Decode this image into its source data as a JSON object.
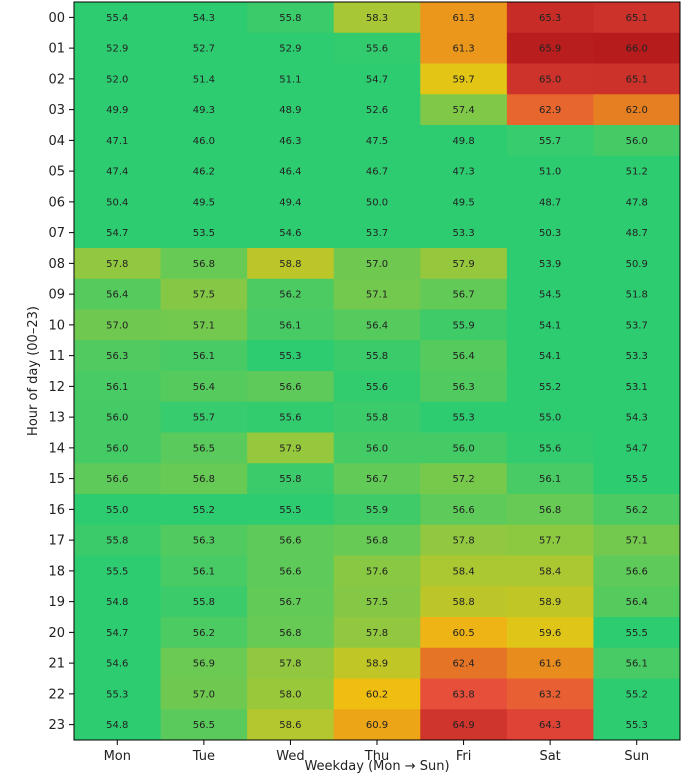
{
  "chart_data": {
    "type": "heatmap",
    "title": "",
    "xlabel": "Weekday (Mon → Sun)",
    "ylabel": "Hour of day (00–23)",
    "x_categories": [
      "Mon",
      "Tue",
      "Wed",
      "Thu",
      "Fri",
      "Sat",
      "Sun"
    ],
    "y_categories": [
      "00",
      "01",
      "02",
      "03",
      "04",
      "05",
      "06",
      "07",
      "08",
      "09",
      "10",
      "11",
      "12",
      "13",
      "14",
      "15",
      "16",
      "17",
      "18",
      "19",
      "20",
      "21",
      "22",
      "23"
    ],
    "colormap": "green-yellow-orange-red",
    "color_stops": [
      "#2ecc71",
      "#f1c40f",
      "#e67e22",
      "#e74c3c",
      "#b71c1c"
    ],
    "values": [
      [
        55.4,
        54.3,
        55.8,
        58.3,
        61.3,
        65.3,
        65.1
      ],
      [
        52.9,
        52.7,
        52.9,
        55.6,
        61.3,
        65.9,
        66.0
      ],
      [
        52.0,
        51.4,
        51.1,
        54.7,
        59.7,
        65.0,
        65.1
      ],
      [
        49.9,
        49.3,
        48.9,
        52.6,
        57.4,
        62.9,
        62.0
      ],
      [
        47.1,
        46.0,
        46.3,
        47.5,
        49.8,
        55.7,
        56.0
      ],
      [
        47.4,
        46.2,
        46.4,
        46.7,
        47.3,
        51.0,
        51.2
      ],
      [
        50.4,
        49.5,
        49.4,
        50.0,
        49.5,
        48.7,
        47.8
      ],
      [
        54.7,
        53.5,
        54.6,
        53.7,
        53.3,
        50.3,
        48.7
      ],
      [
        57.8,
        56.8,
        58.8,
        57.0,
        57.9,
        53.9,
        50.9
      ],
      [
        56.4,
        57.5,
        56.2,
        57.1,
        56.7,
        54.5,
        51.8
      ],
      [
        57.0,
        57.1,
        56.1,
        56.4,
        55.9,
        54.1,
        53.7
      ],
      [
        56.3,
        56.1,
        55.3,
        55.8,
        56.4,
        54.1,
        53.3
      ],
      [
        56.1,
        56.4,
        56.6,
        55.6,
        56.3,
        55.2,
        53.1
      ],
      [
        56.0,
        55.7,
        55.6,
        55.8,
        55.3,
        55.0,
        54.3
      ],
      [
        56.0,
        56.5,
        57.9,
        56.0,
        56.0,
        55.6,
        54.7
      ],
      [
        56.6,
        56.8,
        55.8,
        56.7,
        57.2,
        56.1,
        55.5
      ],
      [
        55.0,
        55.2,
        55.5,
        55.9,
        56.6,
        56.8,
        56.2
      ],
      [
        55.8,
        56.3,
        56.6,
        56.8,
        57.8,
        57.7,
        57.1
      ],
      [
        55.5,
        56.1,
        56.6,
        57.6,
        58.4,
        58.4,
        56.6
      ],
      [
        54.8,
        55.8,
        56.7,
        57.5,
        58.8,
        58.9,
        56.4
      ],
      [
        54.7,
        56.2,
        56.8,
        57.8,
        60.5,
        59.6,
        55.5
      ],
      [
        54.6,
        56.9,
        57.8,
        58.9,
        62.4,
        61.6,
        56.1
      ],
      [
        55.3,
        57.0,
        58.0,
        60.2,
        63.8,
        63.2,
        55.2
      ],
      [
        54.8,
        56.5,
        58.6,
        60.9,
        64.9,
        64.3,
        55.3
      ]
    ]
  }
}
